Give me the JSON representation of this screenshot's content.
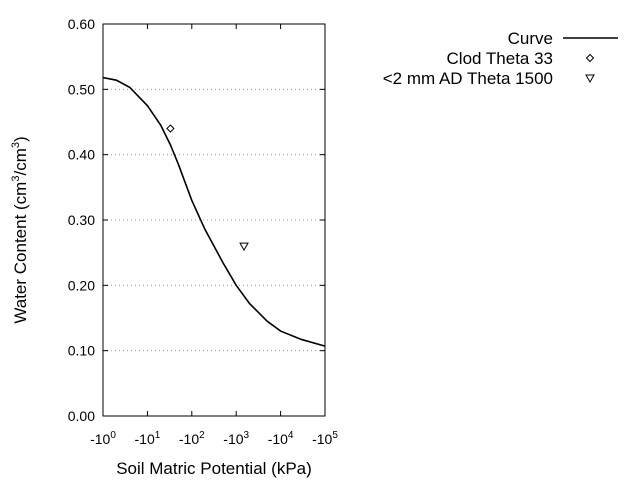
{
  "chart_data": {
    "type": "line",
    "xlabel": "Soil Matric Potential (kPa)",
    "ylabel": [
      "Water Content (cm",
      "3",
      "/cm",
      "3",
      ")"
    ],
    "xscale": "log",
    "xlim": [
      1,
      100000
    ],
    "xticks": [
      {
        "value": 1,
        "label": "-10",
        "exponent": "0"
      },
      {
        "value": 10,
        "label": "-10",
        "exponent": "1"
      },
      {
        "value": 100,
        "label": "-10",
        "exponent": "2"
      },
      {
        "value": 1000,
        "label": "-10",
        "exponent": "3"
      },
      {
        "value": 10000,
        "label": "-10",
        "exponent": "4"
      },
      {
        "value": 100000,
        "label": "-10",
        "exponent": "5"
      }
    ],
    "ylim": [
      0,
      0.6
    ],
    "yticks": [
      {
        "value": 0,
        "label": "0.00"
      },
      {
        "value": 0.1,
        "label": "0.10"
      },
      {
        "value": 0.2,
        "label": "0.20"
      },
      {
        "value": 0.3,
        "label": "0.30"
      },
      {
        "value": 0.4,
        "label": "0.40"
      },
      {
        "value": 0.5,
        "label": "0.50"
      },
      {
        "value": 0.6,
        "label": "0.60"
      }
    ],
    "grid": true,
    "legend": "outside-right",
    "series": [
      {
        "name": "Curve",
        "mark": "line",
        "color": "#000000",
        "x": [
          1,
          2,
          4,
          10,
          20,
          33,
          50,
          100,
          200,
          500,
          1000,
          2000,
          5000,
          10000,
          30000,
          100000
        ],
        "values": [
          0.518,
          0.514,
          0.503,
          0.475,
          0.445,
          0.415,
          0.385,
          0.33,
          0.285,
          0.235,
          0.2,
          0.172,
          0.145,
          0.13,
          0.117,
          0.107
        ]
      },
      {
        "name": "Clod Theta 33",
        "mark": "diamond",
        "color": "#000000",
        "x": [
          33
        ],
        "values": [
          0.44
        ]
      },
      {
        "name": "<2 mm AD Theta 1500",
        "mark": "triangle",
        "color": "#000000",
        "x": [
          1500
        ],
        "values": [
          0.26
        ]
      }
    ]
  }
}
